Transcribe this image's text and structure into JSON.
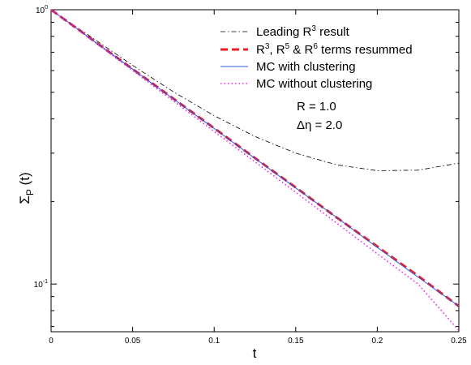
{
  "chart_data": {
    "type": "line",
    "title": "",
    "xlabel": "t",
    "ylabel": "ΣP (t)",
    "ylabel_main": "Σ",
    "ylabel_sub": "P",
    "ylabel_tail": " (t)",
    "xlim": [
      0,
      0.25
    ],
    "ylim": [
      0.067,
      1.0
    ],
    "yscale": "log",
    "grid": false,
    "legend_position": "top-right",
    "x_ticks": [
      0,
      0.05,
      0.1,
      0.15,
      0.2,
      0.25
    ],
    "x_tick_labels": [
      "0",
      "0.05",
      "0.1",
      "0.15",
      "0.2",
      "0.25"
    ],
    "y_ticks": [
      {
        "value": 1.0,
        "base": "10",
        "exp": "0"
      },
      {
        "value": 0.1,
        "base": "10",
        "exp": "-1"
      }
    ],
    "annotations": [
      {
        "id": "r",
        "text": "R = 1.0"
      },
      {
        "id": "deta",
        "text": "Δη = 2.0"
      }
    ],
    "series": [
      {
        "name": "Leading R3 result",
        "legend": {
          "text": "Leading R",
          "sup": "3",
          "tail": " result"
        },
        "color": "#000000",
        "dash": "6,3,1.5,3",
        "width": 0.8,
        "x": [
          0,
          0.025,
          0.05,
          0.075,
          0.1,
          0.125,
          0.15,
          0.175,
          0.2,
          0.225,
          0.25
        ],
        "y": [
          1.0,
          0.792,
          0.627,
          0.502,
          0.411,
          0.345,
          0.3,
          0.272,
          0.259,
          0.26,
          0.276
        ]
      },
      {
        "name": "R3, R5 & R6 terms resummed",
        "legend": {
          "text": "R",
          "sup": "3",
          "text2": ", R",
          "sup2": "5",
          "text3": " & R",
          "sup3": "6",
          "tail": " terms resummed"
        },
        "color": "#e8202a",
        "dash": "9,5",
        "width": 3,
        "x": [
          0,
          0.025,
          0.05,
          0.075,
          0.1,
          0.125,
          0.15,
          0.175,
          0.2,
          0.225,
          0.25
        ],
        "y": [
          1.0,
          0.78,
          0.608,
          0.474,
          0.37,
          0.288,
          0.225,
          0.175,
          0.137,
          0.107,
          0.083
        ]
      },
      {
        "name": "MC with clustering",
        "legend": {
          "text": "MC with clustering"
        },
        "color": "#3355dd",
        "dash": "",
        "width": 1,
        "x": [
          0,
          0.025,
          0.05,
          0.075,
          0.1,
          0.125,
          0.15,
          0.175,
          0.2,
          0.225,
          0.25
        ],
        "y": [
          1.0,
          0.779,
          0.607,
          0.473,
          0.369,
          0.287,
          0.224,
          0.175,
          0.136,
          0.106,
          0.083
        ]
      },
      {
        "name": "MC without clustering",
        "legend": {
          "text": "MC without clustering"
        },
        "color": "#ee22ee",
        "dash": "1.5,3",
        "width": 1.6,
        "x": [
          0,
          0.025,
          0.05,
          0.075,
          0.1,
          0.125,
          0.15,
          0.175,
          0.2,
          0.225,
          0.25
        ],
        "y": [
          1.0,
          0.775,
          0.6,
          0.465,
          0.36,
          0.279,
          0.216,
          0.167,
          0.129,
          0.1,
          0.0677
        ]
      }
    ]
  }
}
